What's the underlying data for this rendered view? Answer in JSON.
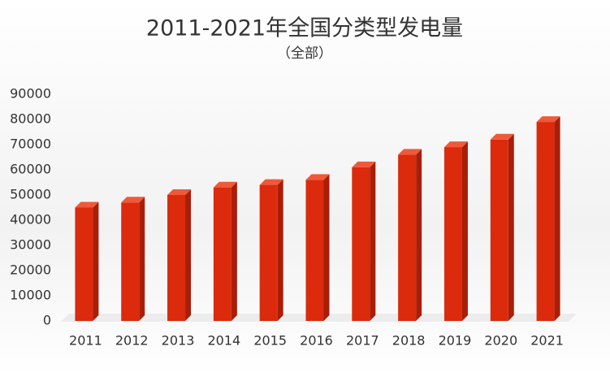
{
  "chart_data": {
    "type": "bar",
    "title": "2011-2021年全国分类型发电量",
    "subtitle": "（全部）",
    "categories": [
      "2011",
      "2012",
      "2013",
      "2014",
      "2015",
      "2016",
      "2017",
      "2018",
      "2019",
      "2020",
      "2021"
    ],
    "values": [
      45000,
      47000,
      50000,
      53000,
      54000,
      56000,
      61000,
      66000,
      69000,
      72000,
      79000
    ],
    "color": "#dc2a0c",
    "ylim": [
      0,
      90000
    ],
    "yticks": [
      0,
      10000,
      20000,
      30000,
      40000,
      50000,
      60000,
      70000,
      80000,
      90000
    ],
    "grid": false
  }
}
